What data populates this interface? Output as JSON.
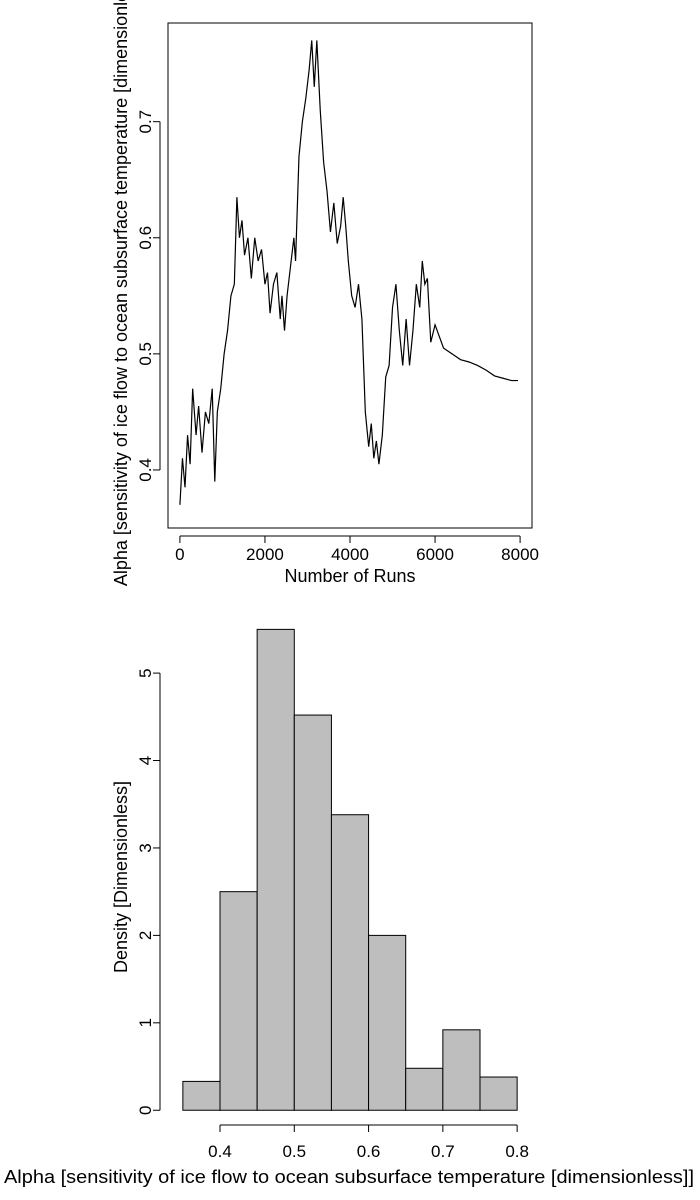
{
  "chart_data": [
    {
      "type": "line",
      "title": "",
      "xlabel": "Number of Runs",
      "ylabel": "Alpha [sensitivity of ice flow to ocean subsurface temperature [dimensionless]]",
      "xlim": [
        -280,
        8280
      ],
      "ylim": [
        0.35,
        0.785
      ],
      "xticks": [
        0,
        2000,
        4000,
        6000,
        8000
      ],
      "xtick_labels": [
        "0",
        "2000",
        "4000",
        "6000",
        "8000"
      ],
      "yticks": [
        0.4,
        0.5,
        0.6,
        0.7
      ],
      "ytick_labels": [
        "0.4",
        "0.5",
        "0.6",
        "0.7"
      ],
      "grid": false,
      "series": [
        {
          "color": "#000000",
          "x": [
            0,
            60,
            120,
            180,
            240,
            300,
            380,
            440,
            520,
            600,
            680,
            760,
            820,
            880,
            960,
            1040,
            1120,
            1200,
            1280,
            1340,
            1400,
            1460,
            1520,
            1600,
            1680,
            1760,
            1840,
            1920,
            2000,
            2060,
            2120,
            2200,
            2280,
            2360,
            2400,
            2460,
            2520,
            2600,
            2680,
            2720,
            2800,
            2880,
            2960,
            3040,
            3100,
            3160,
            3220,
            3300,
            3380,
            3460,
            3540,
            3620,
            3700,
            3780,
            3840,
            3900,
            3960,
            4040,
            4120,
            4200,
            4280,
            4360,
            4440,
            4500,
            4560,
            4620,
            4680,
            4760,
            4840,
            4920,
            5000,
            5080,
            5160,
            5240,
            5320,
            5400,
            5480,
            5560,
            5640,
            5700,
            5760,
            5820,
            5900,
            6000,
            6200,
            6400,
            6600,
            6800,
            7000,
            7200,
            7400,
            7600,
            7800,
            7950
          ],
          "values": [
            0.37,
            0.41,
            0.385,
            0.43,
            0.405,
            0.47,
            0.43,
            0.455,
            0.415,
            0.45,
            0.44,
            0.47,
            0.39,
            0.45,
            0.47,
            0.5,
            0.52,
            0.55,
            0.56,
            0.635,
            0.6,
            0.615,
            0.585,
            0.6,
            0.565,
            0.6,
            0.58,
            0.59,
            0.56,
            0.57,
            0.535,
            0.56,
            0.57,
            0.53,
            0.55,
            0.52,
            0.55,
            0.575,
            0.6,
            0.58,
            0.67,
            0.7,
            0.72,
            0.745,
            0.77,
            0.73,
            0.77,
            0.71,
            0.665,
            0.64,
            0.605,
            0.63,
            0.595,
            0.61,
            0.635,
            0.61,
            0.58,
            0.55,
            0.54,
            0.56,
            0.53,
            0.45,
            0.42,
            0.44,
            0.41,
            0.425,
            0.405,
            0.43,
            0.48,
            0.49,
            0.54,
            0.56,
            0.52,
            0.49,
            0.53,
            0.49,
            0.52,
            0.56,
            0.54,
            0.58,
            0.56,
            0.565,
            0.51,
            0.525,
            0.505,
            0.5,
            0.495,
            0.493,
            0.49,
            0.486,
            0.481,
            0.479,
            0.477,
            0.477
          ]
        }
      ]
    },
    {
      "type": "bar",
      "title": "",
      "xlabel": "Alpha [sensitivity of ice flow to ocean subsurface temperature [dimensionless]]",
      "ylabel": "Density [Dimensionless]",
      "xlim": [
        0.33,
        0.82
      ],
      "ylim": [
        -0.02,
        5.55
      ],
      "bin_width": 0.05,
      "bin_edges": [
        0.35,
        0.4,
        0.45,
        0.5,
        0.55,
        0.6,
        0.65,
        0.7,
        0.75,
        0.8
      ],
      "values": [
        0.33,
        2.5,
        5.5,
        4.52,
        3.38,
        2.0,
        0.48,
        0.92,
        0.38
      ],
      "bar_color": "#bebebe",
      "xticks": [
        0.4,
        0.5,
        0.6,
        0.7,
        0.8
      ],
      "xtick_labels": [
        "0.4",
        "0.5",
        "0.6",
        "0.7",
        "0.8"
      ],
      "yticks": [
        0,
        1,
        2,
        3,
        4,
        5
      ],
      "ytick_labels": [
        "0",
        "1",
        "2",
        "3",
        "4",
        "5"
      ],
      "grid": false
    }
  ]
}
